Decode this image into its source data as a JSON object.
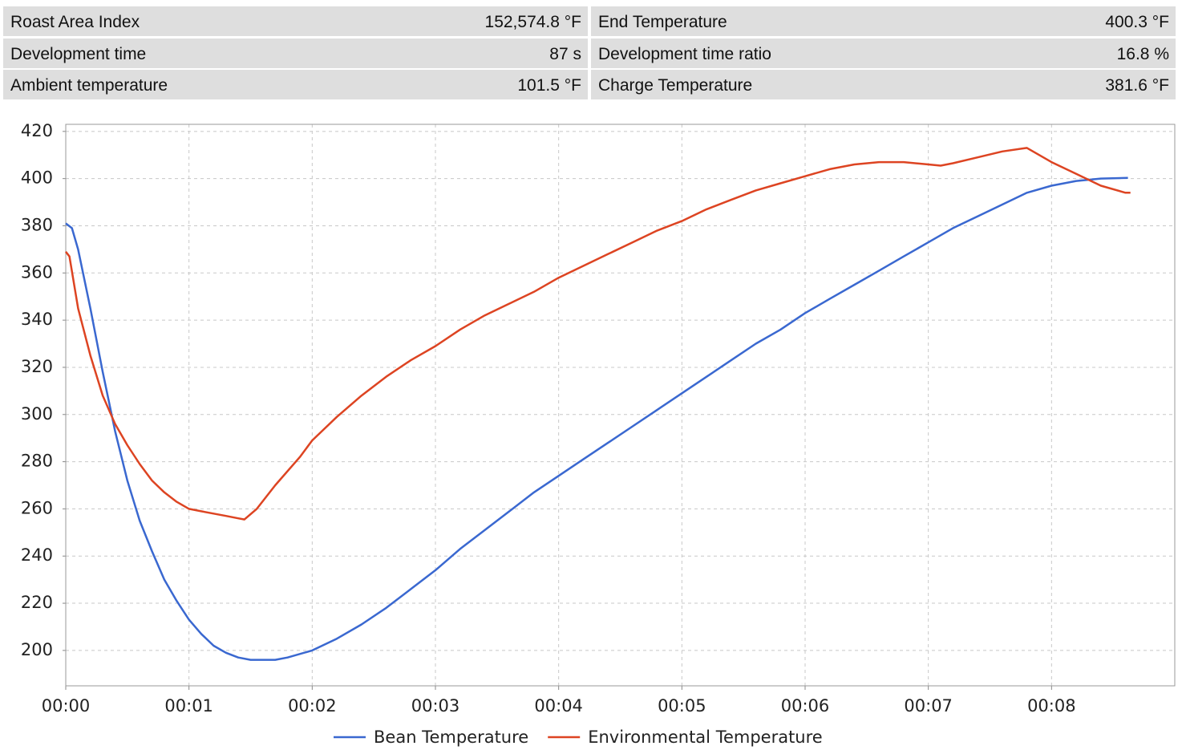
{
  "stats": [
    [
      "Roast Area Index",
      "152,574.8 °F"
    ],
    [
      "End Temperature",
      "400.3 °F"
    ],
    [
      "Development time",
      "87 s"
    ],
    [
      "Development time ratio",
      "16.8 %"
    ],
    [
      "Ambient temperature",
      "101.5 °F"
    ],
    [
      "Charge Temperature",
      "381.6 °F"
    ]
  ],
  "chart_data": {
    "type": "line",
    "xlim": [
      0,
      9.0
    ],
    "ylim": [
      185,
      423
    ],
    "xticks": [
      {
        "value": 0,
        "label": "00:00"
      },
      {
        "value": 1,
        "label": "00:01"
      },
      {
        "value": 2,
        "label": "00:02"
      },
      {
        "value": 3,
        "label": "00:03"
      },
      {
        "value": 4,
        "label": "00:04"
      },
      {
        "value": 5,
        "label": "00:05"
      },
      {
        "value": 6,
        "label": "00:06"
      },
      {
        "value": 7,
        "label": "00:07"
      },
      {
        "value": 8,
        "label": "00:08"
      }
    ],
    "yticks": [
      200,
      220,
      240,
      260,
      280,
      300,
      320,
      340,
      360,
      380,
      400,
      420
    ],
    "grid": true,
    "series": [
      {
        "name": "Bean Temperature",
        "color": "#3a68d0",
        "x": [
          0,
          0.05,
          0.1,
          0.2,
          0.3,
          0.4,
          0.5,
          0.6,
          0.7,
          0.8,
          0.9,
          1.0,
          1.1,
          1.2,
          1.3,
          1.4,
          1.5,
          1.6,
          1.7,
          1.8,
          2.0,
          2.2,
          2.4,
          2.6,
          2.8,
          3.0,
          3.2,
          3.4,
          3.6,
          3.8,
          4.0,
          4.2,
          4.4,
          4.6,
          4.8,
          5.0,
          5.2,
          5.4,
          5.6,
          5.8,
          6.0,
          6.2,
          6.4,
          6.6,
          6.8,
          7.0,
          7.2,
          7.4,
          7.6,
          7.8,
          8.0,
          8.2,
          8.4,
          8.62
        ],
        "values": [
          381,
          379,
          370,
          345,
          318,
          293,
          272,
          255,
          242,
          230,
          221,
          213,
          207,
          202,
          199,
          197,
          196,
          196,
          196,
          197,
          200,
          205,
          211,
          218,
          226,
          234,
          243,
          251,
          259,
          267,
          274,
          281,
          288,
          295,
          302,
          309,
          316,
          323,
          330,
          336,
          343,
          349,
          355,
          361,
          367,
          373,
          379,
          384,
          389,
          394,
          397,
          399,
          400,
          400.3
        ]
      },
      {
        "name": "Environmental Temperature",
        "color": "#dd4422",
        "x": [
          0,
          0.03,
          0.1,
          0.2,
          0.3,
          0.4,
          0.5,
          0.6,
          0.7,
          0.8,
          0.9,
          1.0,
          1.1,
          1.2,
          1.3,
          1.4,
          1.45,
          1.55,
          1.7,
          1.9,
          2.0,
          2.2,
          2.4,
          2.6,
          2.8,
          3.0,
          3.2,
          3.4,
          3.6,
          3.8,
          4.0,
          4.2,
          4.4,
          4.6,
          4.8,
          5.0,
          5.2,
          5.4,
          5.6,
          5.8,
          6.0,
          6.2,
          6.4,
          6.6,
          6.8,
          7.0,
          7.1,
          7.2,
          7.4,
          7.6,
          7.8,
          8.0,
          8.2,
          8.4,
          8.6,
          8.64
        ],
        "values": [
          369,
          367,
          345,
          325,
          308,
          296,
          287,
          279,
          272,
          267,
          263,
          260,
          259,
          258,
          257,
          256,
          255.5,
          260,
          270,
          282,
          289,
          299,
          308,
          316,
          323,
          329,
          336,
          342,
          347,
          352,
          358,
          363,
          368,
          373,
          378,
          382,
          387,
          391,
          395,
          398,
          401,
          404,
          406,
          407,
          407,
          406,
          405.5,
          406.5,
          409,
          411.5,
          413,
          407,
          402,
          397,
          394,
          394
        ]
      }
    ]
  }
}
